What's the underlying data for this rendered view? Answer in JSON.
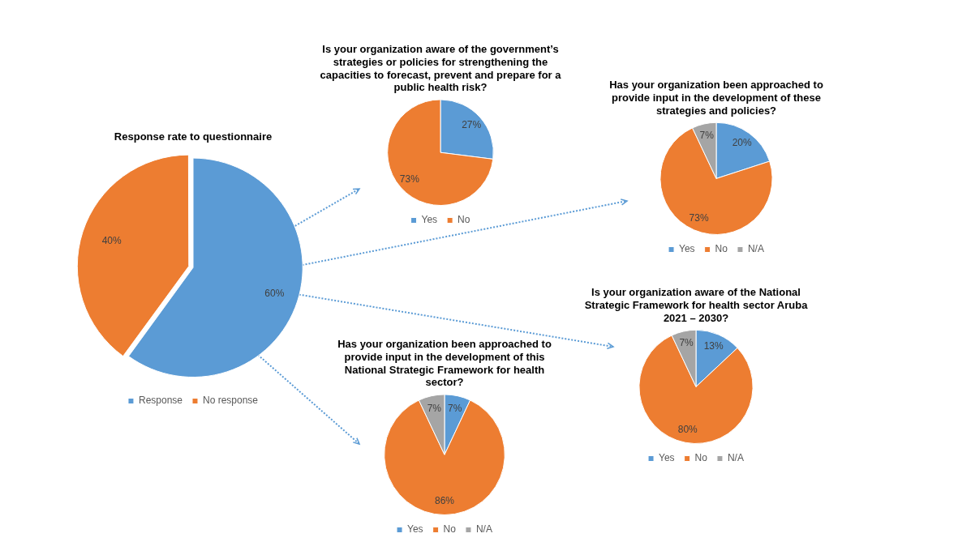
{
  "chart_data": [
    {
      "type": "pie",
      "title": "Response rate to questionnaire",
      "categories": [
        "Response",
        "No response"
      ],
      "values": [
        60,
        40
      ],
      "value_labels": [
        "60%",
        "40%"
      ],
      "colors": [
        "#5b9bd5",
        "#ed7d31"
      ],
      "legend": "bottom"
    },
    {
      "type": "pie",
      "title": "Is your organization aware of the government’s strategies or policies for strengthening the capacities to forecast, prevent and prepare for a public health risk?",
      "categories": [
        "Yes",
        "No"
      ],
      "values": [
        27,
        73
      ],
      "value_labels": [
        "27%",
        "73%"
      ],
      "colors": [
        "#5b9bd5",
        "#ed7d31"
      ],
      "legend": "bottom"
    },
    {
      "type": "pie",
      "title": "Has your organization been approached to provide input in the development of these strategies and policies?",
      "categories": [
        "Yes",
        "No",
        "N/A"
      ],
      "values": [
        20,
        73,
        7
      ],
      "value_labels": [
        "20%",
        "73%",
        "7%"
      ],
      "colors": [
        "#5b9bd5",
        "#ed7d31",
        "#a5a5a5"
      ],
      "legend": "bottom"
    },
    {
      "type": "pie",
      "title": "Has your organization been approached to provide input in the development of this National Strategic Framework for health sector?",
      "categories": [
        "Yes",
        "No",
        "N/A"
      ],
      "values": [
        7,
        86,
        7
      ],
      "value_labels": [
        "7%",
        "86%",
        "7%"
      ],
      "colors": [
        "#5b9bd5",
        "#ed7d31",
        "#a5a5a5"
      ],
      "legend": "bottom"
    },
    {
      "type": "pie",
      "title": "Is your organization aware of the National Strategic Framework for health sector Aruba 2021 – 2030?",
      "categories": [
        "Yes",
        "No",
        "N/A"
      ],
      "values": [
        13,
        80,
        7
      ],
      "value_labels": [
        "13%",
        "80%",
        "7%"
      ],
      "colors": [
        "#5b9bd5",
        "#ed7d31",
        "#a5a5a5"
      ],
      "legend": "bottom"
    }
  ]
}
